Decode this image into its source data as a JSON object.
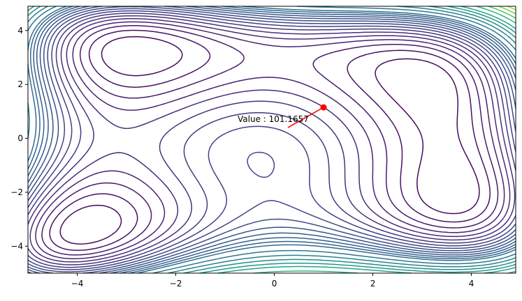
{
  "chart_data": {
    "type": "contour",
    "xlim": [
      -5,
      4.9
    ],
    "ylim": [
      -5,
      4.9
    ],
    "xticks": [
      {
        "value": -4,
        "label": "−4"
      },
      {
        "value": -2,
        "label": "−2"
      },
      0,
      2,
      4
    ],
    "yticks": [
      {
        "value": -4,
        "label": "−4"
      },
      {
        "value": -2,
        "label": "−2"
      },
      0,
      2,
      4
    ],
    "levels": [
      20,
      40,
      60,
      80,
      100,
      120,
      140,
      160,
      180,
      200,
      220,
      240,
      260,
      280,
      300,
      340,
      380,
      420,
      460,
      500,
      560,
      620,
      680,
      740,
      800,
      860
    ],
    "annotation": {
      "text": "Value : 101.1657",
      "x": 1.0,
      "y": 1.15,
      "color": "red"
    }
  }
}
